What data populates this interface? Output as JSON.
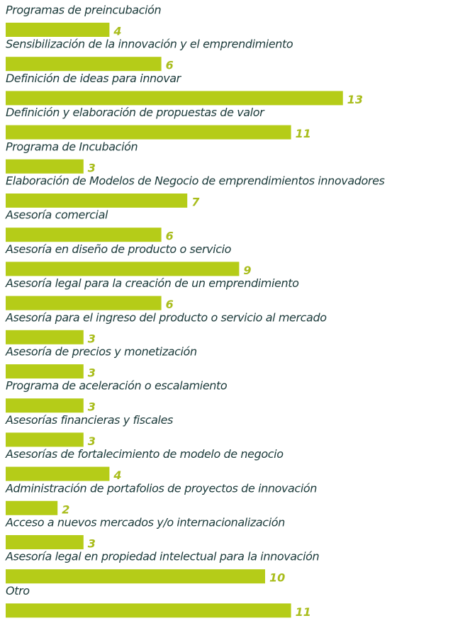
{
  "chart_data": {
    "type": "bar",
    "orientation": "horizontal",
    "color": "#b5cc18",
    "categories": [
      "Programas de preincubación",
      "Sensibilización de la innovación y el emprendimiento",
      "Definición de ideas para innovar",
      "Definición y elaboración de propuestas de valor",
      "Programa de Incubación",
      "Elaboración de Modelos de Negocio de emprendimientos innovadores",
      "Asesoría comercial",
      "Asesoría en diseño de producto o servicio",
      "Asesoría legal para la creación de un emprendimiento",
      "Asesoría para el ingreso del producto o servicio al mercado",
      "Asesoría de precios y monetización",
      "Programa de aceleración o escalamiento",
      "Asesorías financieras y fiscales",
      "Asesorías de fortalecimiento de modelo de negocio",
      "Administración de portafolios de proyectos de innovación",
      "Acceso a nuevos mercados y/o internacionalización",
      "Asesoría legal en propiedad intelectual para la innovación",
      "Otro"
    ],
    "values": [
      4,
      6,
      13,
      11,
      3,
      7,
      6,
      9,
      6,
      3,
      3,
      3,
      3,
      4,
      2,
      3,
      10,
      11
    ]
  }
}
